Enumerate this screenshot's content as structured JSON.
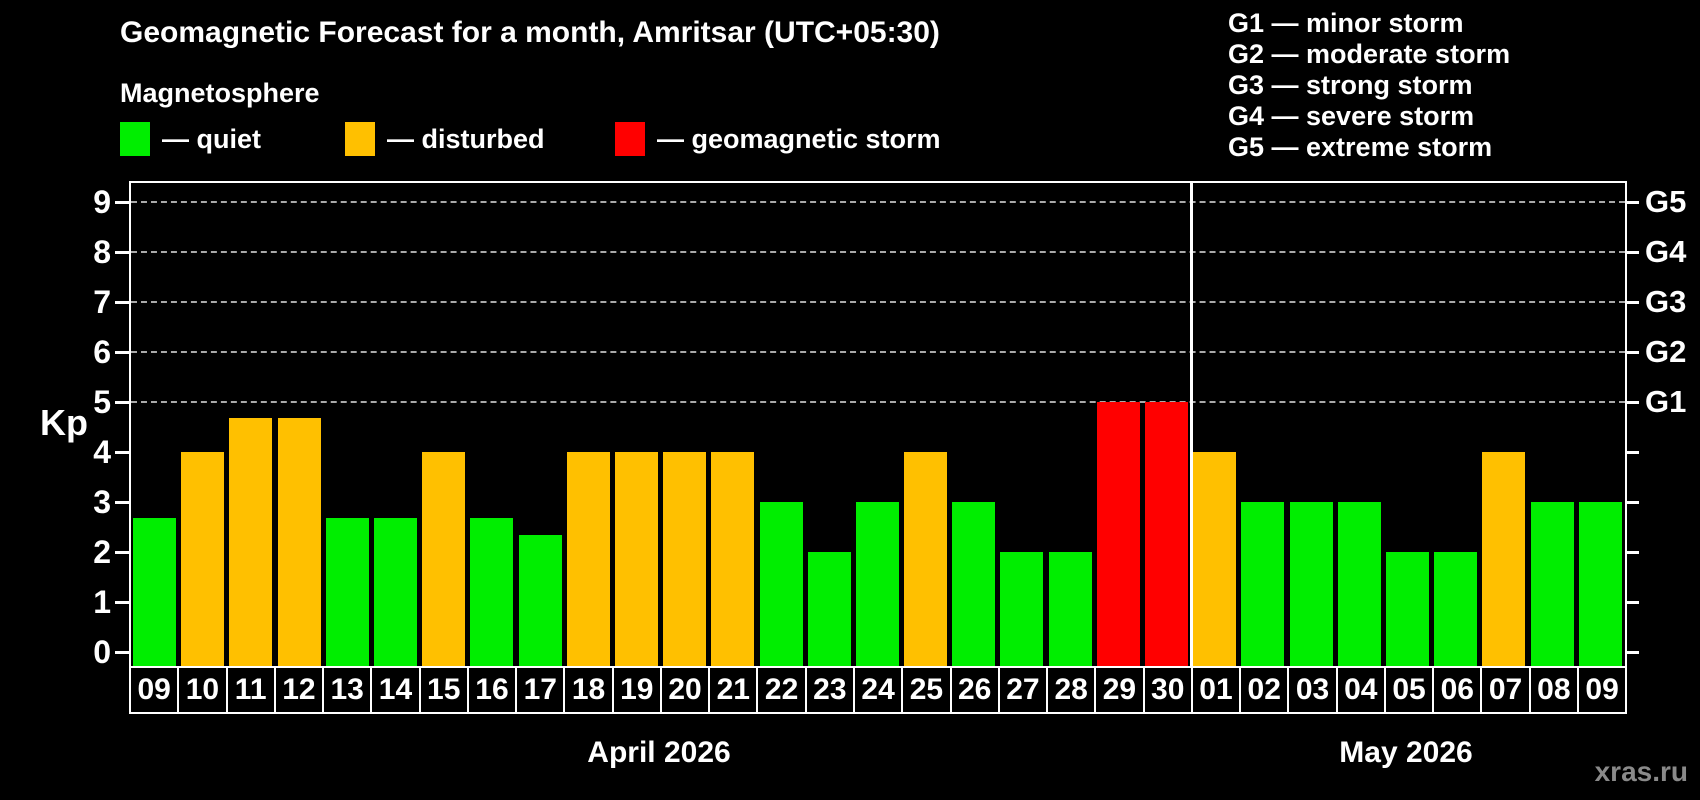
{
  "header": {
    "title": "Geomagnetic Forecast for a month, Amritsar (UTC+05:30)",
    "subtitle": "Magnetosphere"
  },
  "legend": {
    "items": [
      {
        "name": "quiet",
        "label": "— quiet",
        "color": "#00ee00"
      },
      {
        "name": "disturbed",
        "label": "— disturbed",
        "color": "#ffc000"
      },
      {
        "name": "storm",
        "label": "— geomagnetic storm",
        "color": "#ff0000"
      }
    ]
  },
  "storm_scale": {
    "items": [
      {
        "code": "G1",
        "kp": 5,
        "label": "G1 — minor storm"
      },
      {
        "code": "G2",
        "kp": 6,
        "label": "G2 — moderate storm"
      },
      {
        "code": "G3",
        "kp": 7,
        "label": "G3 — strong storm"
      },
      {
        "code": "G4",
        "kp": 8,
        "label": "G4 — severe storm"
      },
      {
        "code": "G5",
        "kp": 9,
        "label": "G5 — extreme storm"
      }
    ]
  },
  "watermark": "xras.ru",
  "chart_data": {
    "type": "bar",
    "ylabel": "Kp",
    "ylim": [
      0,
      9.4
    ],
    "yticks": [
      "0",
      "1",
      "2",
      "3",
      "4",
      "5",
      "6",
      "7",
      "8",
      "9"
    ],
    "gridlines_at_kp": [
      5,
      6,
      7,
      8,
      9
    ],
    "right_axis_labels": [
      {
        "kp": 5,
        "label": "G1"
      },
      {
        "kp": 6,
        "label": "G2"
      },
      {
        "kp": 7,
        "label": "G3"
      },
      {
        "kp": 8,
        "label": "G4"
      },
      {
        "kp": 9,
        "label": "G5"
      }
    ],
    "status_colors": {
      "quiet": "#00ee00",
      "disturbed": "#ffc000",
      "storm": "#ff0000"
    },
    "months": [
      {
        "label": "April 2026",
        "days": [
          {
            "day": "09",
            "kp": 2.67,
            "status": "quiet"
          },
          {
            "day": "10",
            "kp": 4,
            "status": "disturbed"
          },
          {
            "day": "11",
            "kp": 4.67,
            "status": "disturbed"
          },
          {
            "day": "12",
            "kp": 4.67,
            "status": "disturbed"
          },
          {
            "day": "13",
            "kp": 2.67,
            "status": "quiet"
          },
          {
            "day": "14",
            "kp": 2.67,
            "status": "quiet"
          },
          {
            "day": "15",
            "kp": 4,
            "status": "disturbed"
          },
          {
            "day": "16",
            "kp": 2.67,
            "status": "quiet"
          },
          {
            "day": "17",
            "kp": 2.33,
            "status": "quiet"
          },
          {
            "day": "18",
            "kp": 4,
            "status": "disturbed"
          },
          {
            "day": "19",
            "kp": 4,
            "status": "disturbed"
          },
          {
            "day": "20",
            "kp": 4,
            "status": "disturbed"
          },
          {
            "day": "21",
            "kp": 4,
            "status": "disturbed"
          },
          {
            "day": "22",
            "kp": 3,
            "status": "quiet"
          },
          {
            "day": "23",
            "kp": 2,
            "status": "quiet"
          },
          {
            "day": "24",
            "kp": 3,
            "status": "quiet"
          },
          {
            "day": "25",
            "kp": 4,
            "status": "disturbed"
          },
          {
            "day": "26",
            "kp": 3,
            "status": "quiet"
          },
          {
            "day": "27",
            "kp": 2,
            "status": "quiet"
          },
          {
            "day": "28",
            "kp": 2,
            "status": "quiet"
          },
          {
            "day": "29",
            "kp": 5,
            "status": "storm"
          },
          {
            "day": "30",
            "kp": 5,
            "status": "storm"
          }
        ]
      },
      {
        "label": "May 2026",
        "days": [
          {
            "day": "01",
            "kp": 4,
            "status": "disturbed"
          },
          {
            "day": "02",
            "kp": 3,
            "status": "quiet"
          },
          {
            "day": "03",
            "kp": 3,
            "status": "quiet"
          },
          {
            "day": "04",
            "kp": 3,
            "status": "quiet"
          },
          {
            "day": "05",
            "kp": 2,
            "status": "quiet"
          },
          {
            "day": "06",
            "kp": 2,
            "status": "quiet"
          },
          {
            "day": "07",
            "kp": 4,
            "status": "disturbed"
          },
          {
            "day": "08",
            "kp": 3,
            "status": "quiet"
          },
          {
            "day": "09",
            "kp": 3,
            "status": "quiet"
          }
        ]
      }
    ]
  }
}
